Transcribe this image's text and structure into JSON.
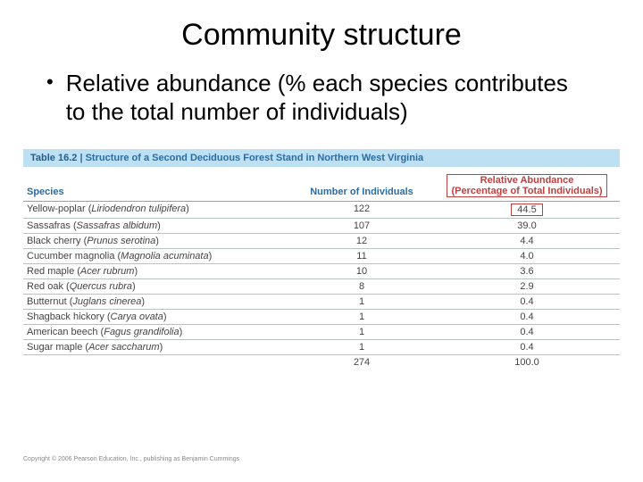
{
  "title": "Community structure",
  "bullet": "Relative abundance (% each species contributes to the total number of individuals)",
  "table": {
    "caption_prefix": "Table 16.2",
    "caption_text": "Structure of a Second Deciduous Forest Stand in Northern West Virginia",
    "header_species": "Species",
    "header_num": "Number of Individuals",
    "header_rel_line1": "Relative Abundance",
    "header_rel_line2": "(Percentage of Total Individuals)",
    "rows": [
      {
        "common": "Yellow-poplar",
        "sci": "Liriodendron tulipifera",
        "num": "122",
        "rel": "44.5",
        "hl": true
      },
      {
        "common": "Sassafras",
        "sci": "Sassafras albidum",
        "num": "107",
        "rel": "39.0",
        "hl": false
      },
      {
        "common": "Black cherry",
        "sci": "Prunus serotina",
        "num": "12",
        "rel": "4.4",
        "hl": false
      },
      {
        "common": "Cucumber magnolia",
        "sci": "Magnolia acuminata",
        "num": "11",
        "rel": "4.0",
        "hl": false
      },
      {
        "common": "Red maple",
        "sci": "Acer rubrum",
        "num": "10",
        "rel": "3.6",
        "hl": false
      },
      {
        "common": "Red oak",
        "sci": "Quercus rubra",
        "num": "8",
        "rel": "2.9",
        "hl": false
      },
      {
        "common": "Butternut",
        "sci": "Juglans cinerea",
        "num": "1",
        "rel": "0.4",
        "hl": false
      },
      {
        "common": "Shagback hickory",
        "sci": "Carya ovata",
        "num": "1",
        "rel": "0.4",
        "hl": false
      },
      {
        "common": "American beech",
        "sci": "Fagus grandifolia",
        "num": "1",
        "rel": "0.4",
        "hl": false
      },
      {
        "common": "Sugar maple",
        "sci": "Acer saccharum",
        "num": "1",
        "rel": "0.4",
        "hl": false
      }
    ],
    "total_num": "274",
    "total_rel": "100.0"
  },
  "copyright": "Copyright © 2006 Pearson Education, Inc., publishing as Benjamin Cummings",
  "colors": {
    "caption_bg": "#bde0f2",
    "header_text": "#2b6ca3",
    "highlight": "#c04040",
    "row_border": "#b8c4c4"
  }
}
